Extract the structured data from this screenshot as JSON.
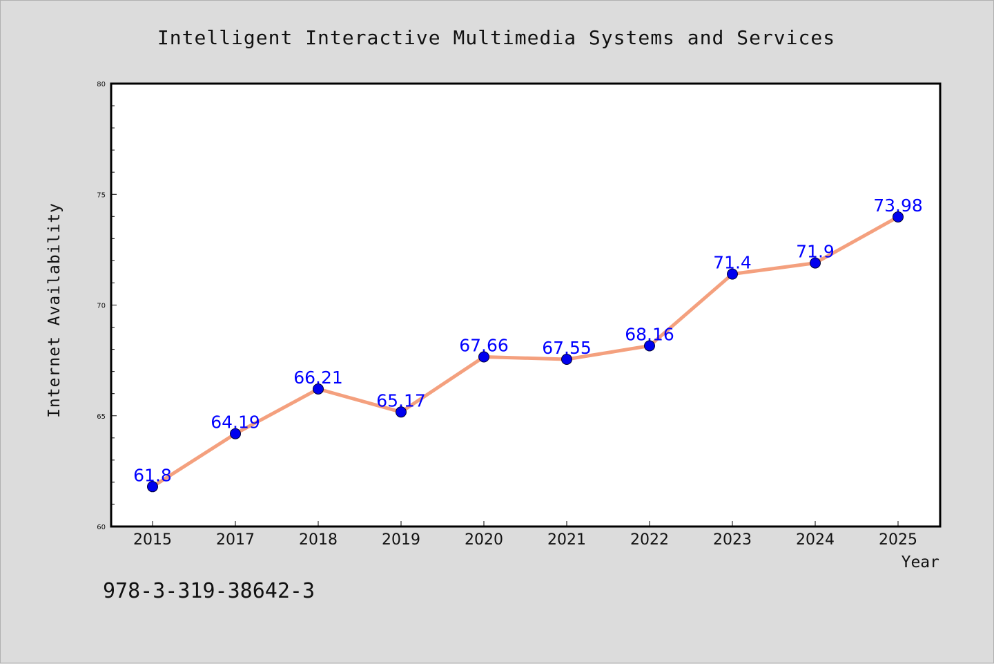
{
  "figure": {
    "background": "#dcdcdc",
    "plot_background": "#ffffff",
    "line_color": "#f4a07e",
    "marker_color": "#0000ee",
    "label_color": "#0000ff",
    "footer_text": "978-3-319-38642-3"
  },
  "chart_data": {
    "type": "line",
    "title": "Intelligent Interactive Multimedia Systems and Services",
    "xlabel": "Year",
    "ylabel": "Internet Availability",
    "categories": [
      "2015",
      "2017",
      "2018",
      "2019",
      "2020",
      "2021",
      "2022",
      "2023",
      "2024",
      "2025"
    ],
    "series": [
      {
        "values": [
          61.8,
          64.19,
          66.21,
          65.17,
          67.66,
          67.55,
          68.16,
          71.4,
          71.9,
          73.98
        ],
        "data_labels": [
          "61.8",
          "64.19",
          "66.21",
          "65.17",
          "67.66",
          "67.55",
          "68.16",
          "71.4",
          "71.9",
          "73.98"
        ]
      }
    ],
    "ylim": [
      60,
      80
    ],
    "yticks": [
      "60",
      "65",
      "70",
      "75",
      "80"
    ],
    "grid": false,
    "legend": "none"
  }
}
